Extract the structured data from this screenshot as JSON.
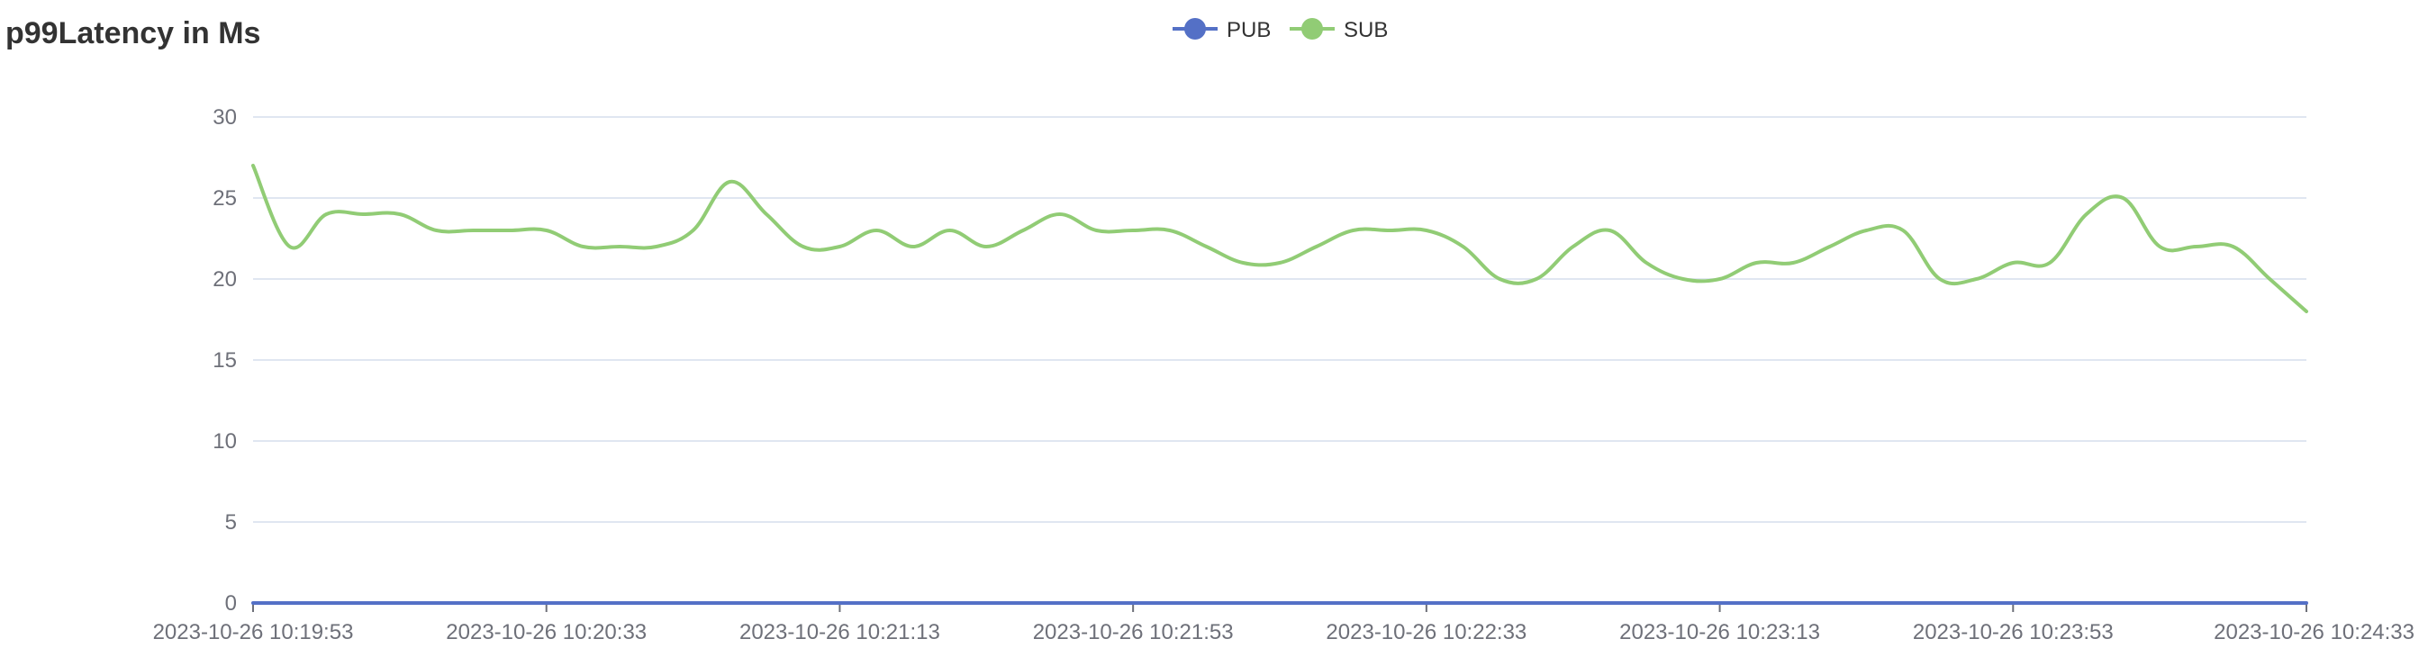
{
  "chart_data": {
    "type": "line",
    "title": "p99Latency in Ms",
    "xlabel": "",
    "ylabel": "",
    "ylim": [
      0,
      30
    ],
    "yticks": [
      0,
      5,
      10,
      15,
      20,
      25,
      30
    ],
    "grid": true,
    "legend_position": "top-center",
    "x_tick_labels": [
      "2023-10-26 10:19:53",
      "2023-10-26 10:20:33",
      "2023-10-26 10:21:13",
      "2023-10-26 10:21:53",
      "2023-10-26 10:22:33",
      "2023-10-26 10:23:13",
      "2023-10-26 10:23:53",
      "2023-10-26 10:24:33"
    ],
    "x": [
      "10:19:53",
      "10:19:58",
      "10:20:03",
      "10:20:08",
      "10:20:13",
      "10:20:18",
      "10:20:23",
      "10:20:28",
      "10:20:33",
      "10:20:38",
      "10:20:43",
      "10:20:48",
      "10:20:53",
      "10:20:58",
      "10:21:03",
      "10:21:08",
      "10:21:13",
      "10:21:18",
      "10:21:23",
      "10:21:28",
      "10:21:33",
      "10:21:38",
      "10:21:43",
      "10:21:48",
      "10:21:53",
      "10:21:58",
      "10:22:03",
      "10:22:08",
      "10:22:13",
      "10:22:18",
      "10:22:23",
      "10:22:28",
      "10:22:33",
      "10:22:38",
      "10:22:43",
      "10:22:48",
      "10:22:53",
      "10:22:58",
      "10:23:03",
      "10:23:08",
      "10:23:13",
      "10:23:18",
      "10:23:23",
      "10:23:28",
      "10:23:33",
      "10:23:38",
      "10:23:43",
      "10:23:48",
      "10:23:53",
      "10:23:58",
      "10:24:03",
      "10:24:08",
      "10:24:13",
      "10:24:18",
      "10:24:23",
      "10:24:28",
      "10:24:33"
    ],
    "series": [
      {
        "name": "PUB",
        "color": "#5470c6",
        "values": [
          0,
          0,
          0,
          0,
          0,
          0,
          0,
          0,
          0,
          0,
          0,
          0,
          0,
          0,
          0,
          0,
          0,
          0,
          0,
          0,
          0,
          0,
          0,
          0,
          0,
          0,
          0,
          0,
          0,
          0,
          0,
          0,
          0,
          0,
          0,
          0,
          0,
          0,
          0,
          0,
          0,
          0,
          0,
          0,
          0,
          0,
          0,
          0,
          0,
          0,
          0,
          0,
          0,
          0,
          0,
          0,
          0
        ]
      },
      {
        "name": "SUB",
        "color": "#91cc75",
        "values": [
          27,
          22,
          24,
          24,
          24,
          23,
          23,
          23,
          23,
          22,
          22,
          22,
          23,
          26,
          24,
          22,
          22,
          23,
          22,
          23,
          22,
          23,
          24,
          23,
          23,
          23,
          22,
          21,
          21,
          22,
          23,
          23,
          23,
          22,
          20,
          20,
          22,
          23,
          21,
          20,
          20,
          21,
          21,
          22,
          23,
          23,
          20,
          20,
          21,
          21,
          24,
          25,
          22,
          22,
          22,
          20,
          18
        ]
      }
    ]
  }
}
